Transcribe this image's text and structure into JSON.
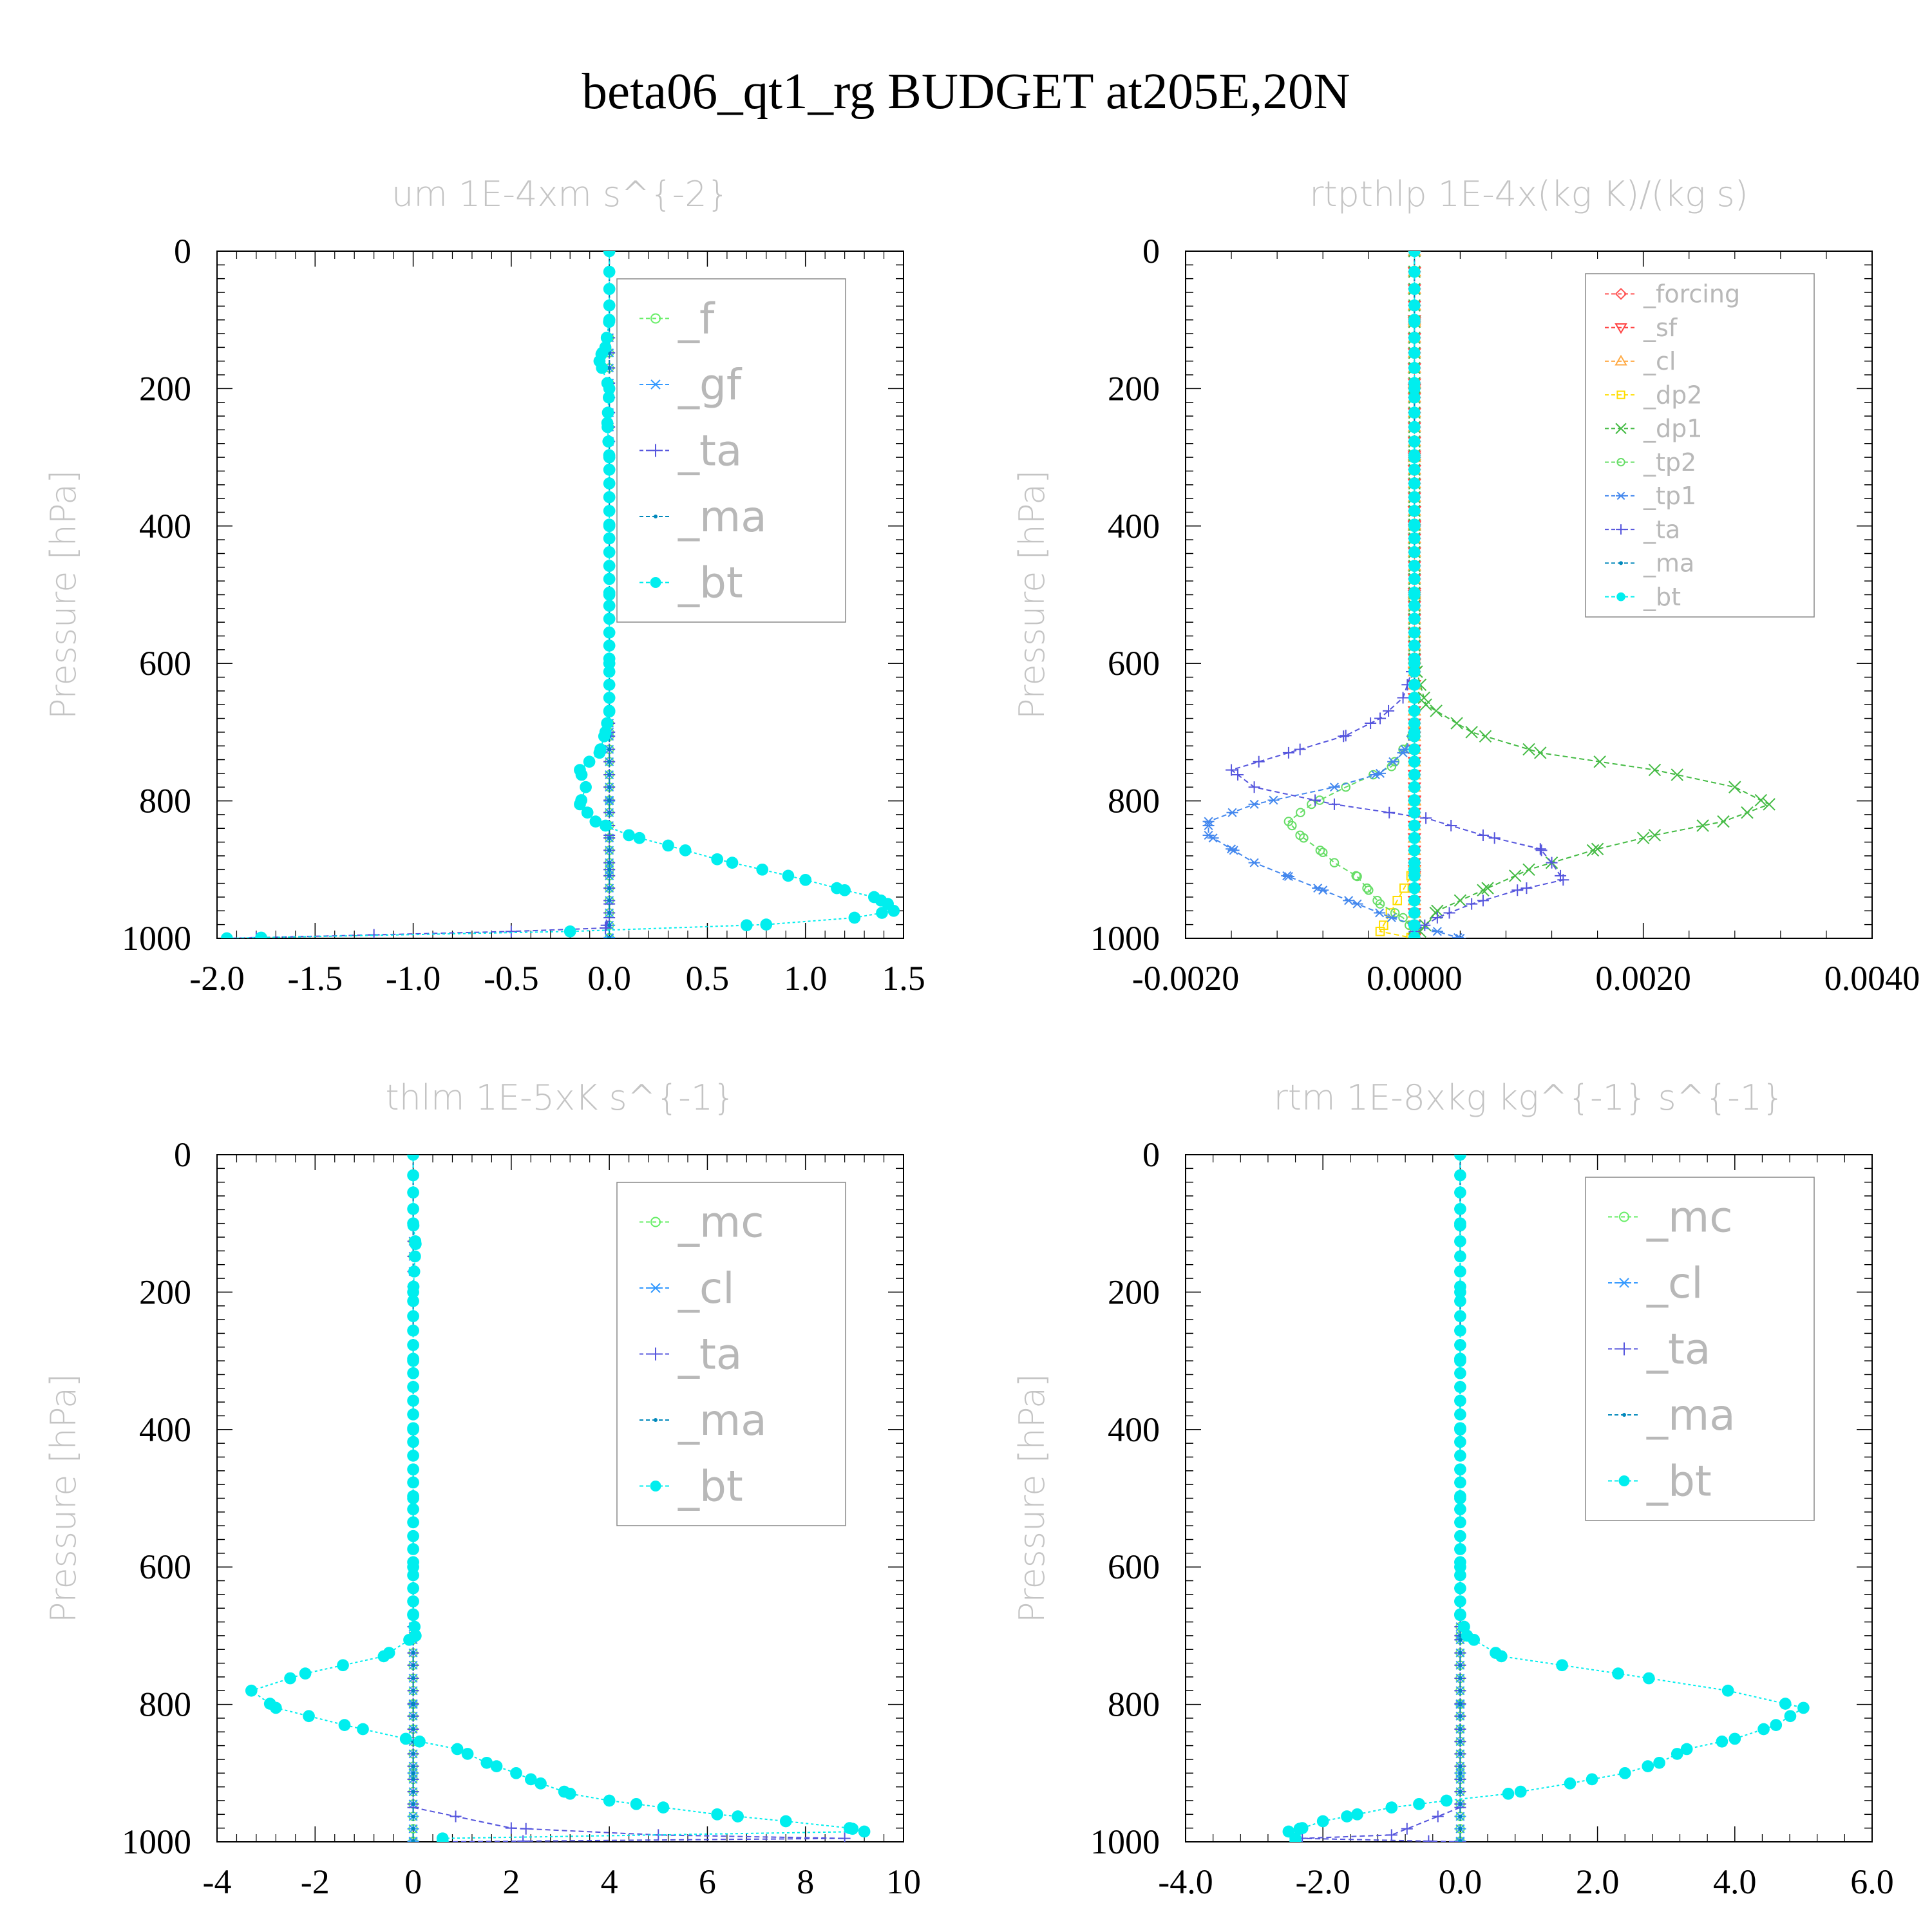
{
  "figure": {
    "title": "beta06_qt1_rg  BUDGET at205E,20N"
  },
  "chart_data": [
    {
      "type": "line",
      "title": "um   1E-4xm s^{-2}",
      "ylabel": "Pressure [hPa]",
      "xlim": [
        -2.0,
        1.5
      ],
      "ylim": [
        1000,
        0
      ],
      "xticks": [
        -2.0,
        -1.5,
        -1.0,
        -0.5,
        0.0,
        0.5,
        1.0,
        1.5
      ],
      "xtick_labels": [
        "-2.0",
        "-1.5",
        "-1.0",
        "-0.5",
        "0.0",
        "0.5",
        "1.0",
        "1.5"
      ],
      "yticks": [
        0,
        200,
        400,
        600,
        800,
        1000
      ],
      "ytick_labels": [
        "0",
        "200",
        "400",
        "600",
        "800",
        "1000"
      ],
      "legend_position": "top-right",
      "legend_size": "large",
      "series": [
        {
          "name": "_f",
          "color": "#66ee66",
          "marker": "circle-open",
          "pressure": [
            0,
            100,
            200,
            300,
            400,
            500,
            600,
            700,
            800,
            900,
            1000
          ],
          "values": [
            0,
            0,
            0,
            0,
            0,
            0,
            0,
            0,
            0,
            0,
            0
          ]
        },
        {
          "name": "_gf",
          "color": "#3399ff",
          "marker": "star",
          "pressure": [
            0,
            100,
            200,
            300,
            400,
            500,
            600,
            700,
            800,
            900,
            1000
          ],
          "values": [
            0,
            0,
            0,
            0,
            0,
            0,
            0,
            0,
            0,
            0,
            0
          ]
        },
        {
          "name": "_ta",
          "color": "#5555dd",
          "marker": "plus",
          "pressure": [
            0,
            700,
            850,
            900,
            950,
            970,
            985,
            990,
            995,
            1000
          ],
          "values": [
            0,
            0,
            0,
            0,
            0,
            0,
            -0.02,
            -0.5,
            -1.2,
            -1.95
          ]
        },
        {
          "name": "_ma",
          "color": "#0088bb",
          "marker": "dot",
          "pressure": [
            0,
            100,
            200,
            300,
            400,
            500,
            600,
            700,
            800,
            900,
            1000
          ],
          "values": [
            0,
            0,
            0,
            0,
            0,
            0,
            0,
            0,
            0,
            0,
            0
          ]
        },
        {
          "name": "_bt",
          "color": "#00eeee",
          "marker": "filled-circle",
          "pressure": [
            0,
            100,
            140,
            150,
            160,
            200,
            250,
            300,
            400,
            500,
            600,
            670,
            700,
            730,
            755,
            780,
            805,
            830,
            850,
            865,
            885,
            900,
            915,
            930,
            940,
            950,
            960,
            970,
            980,
            990,
            1000
          ],
          "values": [
            0,
            0,
            -0.02,
            -0.04,
            -0.05,
            0,
            -0.01,
            0,
            0,
            0,
            0,
            0,
            -0.02,
            -0.05,
            -0.15,
            -0.12,
            -0.15,
            -0.07,
            0.1,
            0.3,
            0.55,
            0.78,
            1.0,
            1.2,
            1.35,
            1.42,
            1.45,
            1.25,
            0.8,
            -0.2,
            -1.95
          ]
        }
      ]
    },
    {
      "type": "line",
      "title": "rtpthlp   1E-4x(kg K)/(kg s)",
      "ylabel": "Pressure [hPa]",
      "xlim": [
        -0.002,
        0.004
      ],
      "ylim": [
        1000,
        0
      ],
      "xticks": [
        -0.002,
        0.0,
        0.002,
        0.004
      ],
      "xtick_labels": [
        "-0.0020",
        "0.0000",
        "0.0020",
        "0.0040"
      ],
      "yticks": [
        0,
        200,
        400,
        600,
        800,
        1000
      ],
      "ytick_labels": [
        "0",
        "200",
        "400",
        "600",
        "800",
        "1000"
      ],
      "legend_position": "top-right",
      "legend_size": "small",
      "series": [
        {
          "name": "_forcing",
          "color": "#ff5555",
          "marker": "diamond-open",
          "pressure": [
            0,
            100,
            200,
            300,
            400,
            500,
            600,
            700,
            800,
            900,
            1000
          ],
          "values": [
            0,
            0,
            0,
            0,
            0,
            0,
            0,
            0,
            0,
            0,
            0
          ]
        },
        {
          "name": "_sf",
          "color": "#ff4444",
          "marker": "triangle-down",
          "pressure": [
            0,
            100,
            200,
            300,
            400,
            500,
            600,
            700,
            800,
            900,
            1000
          ],
          "values": [
            0,
            0,
            0,
            0,
            0,
            0,
            0,
            0,
            0,
            0,
            0
          ]
        },
        {
          "name": "_cl",
          "color": "#ffaa44",
          "marker": "triangle-up",
          "pressure": [
            0,
            100,
            200,
            300,
            400,
            500,
            600,
            700,
            800,
            900,
            1000
          ],
          "values": [
            0,
            0,
            0,
            0,
            0,
            0,
            0,
            0,
            0,
            0,
            0
          ]
        },
        {
          "name": "_dp2",
          "color": "#ffdd00",
          "marker": "square-open",
          "pressure": [
            0,
            100,
            200,
            300,
            400,
            500,
            600,
            700,
            800,
            900,
            990,
            1000
          ],
          "values": [
            0,
            0,
            0,
            0,
            0,
            0,
            0,
            0,
            0,
            0,
            -0.0003,
            0
          ]
        },
        {
          "name": "_dp1",
          "color": "#44bb44",
          "marker": "x",
          "pressure": [
            0,
            600,
            660,
            700,
            730,
            755,
            780,
            805,
            830,
            850,
            870,
            900,
            930,
            960,
            990,
            1000
          ],
          "values": [
            0,
            0,
            0.0001,
            0.0005,
            0.0011,
            0.0021,
            0.0028,
            0.0031,
            0.0027,
            0.0021,
            0.0016,
            0.001,
            0.0006,
            0.0002,
            5e-05,
            0
          ]
        },
        {
          "name": "_tp2",
          "color": "#66dd66",
          "marker": "circle-open",
          "pressure": [
            0,
            700,
            750,
            780,
            805,
            830,
            850,
            875,
            890,
            910,
            930,
            950,
            970,
            990,
            1000
          ],
          "values": [
            0,
            0,
            -0.0002,
            -0.0006,
            -0.0009,
            -0.0011,
            -0.001,
            -0.0008,
            -0.0007,
            -0.0005,
            -0.0004,
            -0.0003,
            -0.0001,
            0,
            0
          ]
        },
        {
          "name": "_tp1",
          "color": "#4488ee",
          "marker": "star",
          "pressure": [
            0,
            700,
            730,
            760,
            780,
            805,
            830,
            850,
            870,
            890,
            910,
            930,
            950,
            970,
            990,
            1000
          ],
          "values": [
            0,
            0,
            -0.0001,
            -0.0003,
            -0.0007,
            -0.0014,
            -0.0018,
            -0.0018,
            -0.0016,
            -0.0014,
            -0.0011,
            -0.0008,
            -0.0005,
            -0.0002,
            0.0002,
            0.0004
          ]
        },
        {
          "name": "_ta",
          "color": "#5555dd",
          "marker": "plus",
          "pressure": [
            0,
            600,
            650,
            680,
            705,
            730,
            755,
            780,
            805,
            825,
            850,
            870,
            890,
            915,
            930,
            950,
            970,
            990,
            1000
          ],
          "values": [
            0,
            0,
            -0.0001,
            -0.0003,
            -0.0006,
            -0.0011,
            -0.0016,
            -0.0014,
            -0.0007,
            0.0001,
            0.0006,
            0.0011,
            0.0012,
            0.0013,
            0.0009,
            0.0005,
            0.0002,
            0,
            0
          ]
        },
        {
          "name": "_ma",
          "color": "#0088bb",
          "marker": "dot",
          "pressure": [
            0,
            100,
            200,
            300,
            400,
            500,
            600,
            700,
            800,
            900,
            1000
          ],
          "values": [
            0,
            0,
            0,
            0,
            0,
            0,
            0,
            0,
            0,
            0,
            0
          ]
        },
        {
          "name": "_bt",
          "color": "#00eeee",
          "marker": "filled-circle",
          "pressure": [
            0,
            100,
            200,
            300,
            400,
            500,
            600,
            700,
            800,
            900,
            1000
          ],
          "values": [
            0,
            0,
            0,
            0,
            0,
            0,
            0,
            0,
            0,
            0,
            0
          ]
        }
      ]
    },
    {
      "type": "line",
      "title": "thlm   1E-5xK s^{-1}",
      "ylabel": "Pressure [hPa]",
      "xlim": [
        -4,
        10
      ],
      "ylim": [
        1000,
        0
      ],
      "xticks": [
        -4,
        -2,
        0,
        2,
        4,
        6,
        8,
        10
      ],
      "xtick_labels": [
        "-4",
        "-2",
        "0",
        "2",
        "4",
        "6",
        "8",
        "10"
      ],
      "yticks": [
        0,
        200,
        400,
        600,
        800,
        1000
      ],
      "ytick_labels": [
        "0",
        "200",
        "400",
        "600",
        "800",
        "1000"
      ],
      "legend_position": "top-right",
      "legend_size": "large",
      "series": [
        {
          "name": "_mc",
          "color": "#66ee66",
          "marker": "circle-open",
          "pressure": [
            0,
            100,
            200,
            300,
            400,
            500,
            600,
            700,
            800,
            900,
            1000
          ],
          "values": [
            0,
            0,
            0,
            0,
            0,
            0,
            0,
            0,
            0,
            0,
            0
          ]
        },
        {
          "name": "_cl",
          "color": "#3399ff",
          "marker": "star",
          "pressure": [
            0,
            100,
            200,
            300,
            400,
            500,
            600,
            700,
            800,
            900,
            1000
          ],
          "values": [
            0,
            0,
            0,
            0,
            0,
            0,
            0,
            0,
            0,
            0,
            0
          ]
        },
        {
          "name": "_ta",
          "color": "#5555dd",
          "marker": "plus",
          "pressure": [
            0,
            700,
            950,
            980,
            990,
            995,
            1000
          ],
          "values": [
            0,
            0,
            0,
            2,
            5,
            8.8,
            0.6
          ]
        },
        {
          "name": "_ma",
          "color": "#0088bb",
          "marker": "dot",
          "pressure": [
            0,
            100,
            200,
            300,
            400,
            500,
            600,
            700,
            800,
            900,
            1000
          ],
          "values": [
            0,
            0,
            0,
            0,
            0,
            0,
            0,
            0,
            0,
            0,
            0
          ]
        },
        {
          "name": "_bt",
          "color": "#00eeee",
          "marker": "filled-circle",
          "pressure": [
            0,
            100,
            130,
            200,
            300,
            400,
            500,
            600,
            670,
            700,
            730,
            755,
            780,
            805,
            830,
            850,
            865,
            885,
            900,
            915,
            930,
            940,
            950,
            960,
            970,
            980,
            985,
            995
          ],
          "values": [
            0,
            0,
            0.05,
            0,
            0,
            0,
            0,
            0,
            0,
            0.05,
            -0.6,
            -2.2,
            -3.3,
            -2.8,
            -1.4,
            -0.15,
            0.9,
            1.5,
            2.1,
            2.6,
            3.2,
            4.0,
            5.1,
            6.2,
            7.6,
            8.9,
            9.2,
            0.6
          ]
        }
      ]
    },
    {
      "type": "line",
      "title": "rtm   1E-8xkg kg^{-1} s^{-1}",
      "ylabel": "Pressure [hPa]",
      "xlim": [
        -4.0,
        6.0
      ],
      "ylim": [
        1000,
        0
      ],
      "xticks": [
        -4.0,
        -2.0,
        0.0,
        2.0,
        4.0,
        6.0
      ],
      "xtick_labels": [
        "-4.0",
        "-2.0",
        "0.0",
        "2.0",
        "4.0",
        "6.0"
      ],
      "yticks": [
        0,
        200,
        400,
        600,
        800,
        1000
      ],
      "ytick_labels": [
        "0",
        "200",
        "400",
        "600",
        "800",
        "1000"
      ],
      "legend_position": "top-right",
      "legend_size": "large",
      "series": [
        {
          "name": "_mc",
          "color": "#66ee66",
          "marker": "circle-open",
          "pressure": [
            0,
            100,
            200,
            300,
            400,
            500,
            600,
            700,
            800,
            900,
            1000
          ],
          "values": [
            0,
            0,
            0,
            0,
            0,
            0,
            0,
            0,
            0,
            0,
            0
          ]
        },
        {
          "name": "_cl",
          "color": "#3399ff",
          "marker": "star",
          "pressure": [
            0,
            100,
            200,
            300,
            400,
            500,
            600,
            700,
            800,
            900,
            1000
          ],
          "values": [
            0,
            0,
            0,
            0,
            0,
            0,
            0,
            0,
            0,
            0,
            0
          ]
        },
        {
          "name": "_ta",
          "color": "#5555dd",
          "marker": "plus",
          "pressure": [
            0,
            700,
            950,
            990,
            995,
            1000
          ],
          "values": [
            0,
            0,
            0,
            -1.0,
            -2.3,
            0
          ]
        },
        {
          "name": "_ma",
          "color": "#0088bb",
          "marker": "dot",
          "pressure": [
            0,
            100,
            200,
            300,
            400,
            500,
            600,
            700,
            800,
            900,
            1000
          ],
          "values": [
            0,
            0,
            0,
            0,
            0,
            0,
            0,
            0,
            0,
            0,
            0
          ]
        },
        {
          "name": "_bt",
          "color": "#00eeee",
          "marker": "filled-circle",
          "pressure": [
            0,
            100,
            200,
            300,
            400,
            500,
            600,
            670,
            700,
            730,
            755,
            780,
            805,
            830,
            850,
            865,
            885,
            900,
            915,
            930,
            940,
            950,
            960,
            970,
            980,
            985,
            995
          ],
          "values": [
            0,
            0,
            0,
            0,
            0,
            0,
            0,
            0,
            0.1,
            0.6,
            2.3,
            3.9,
            5.0,
            4.6,
            4.0,
            3.3,
            2.9,
            2.4,
            1.6,
            0.7,
            -0.2,
            -1.0,
            -1.5,
            -2.0,
            -2.3,
            -2.5,
            -2.4
          ]
        }
      ]
    }
  ]
}
